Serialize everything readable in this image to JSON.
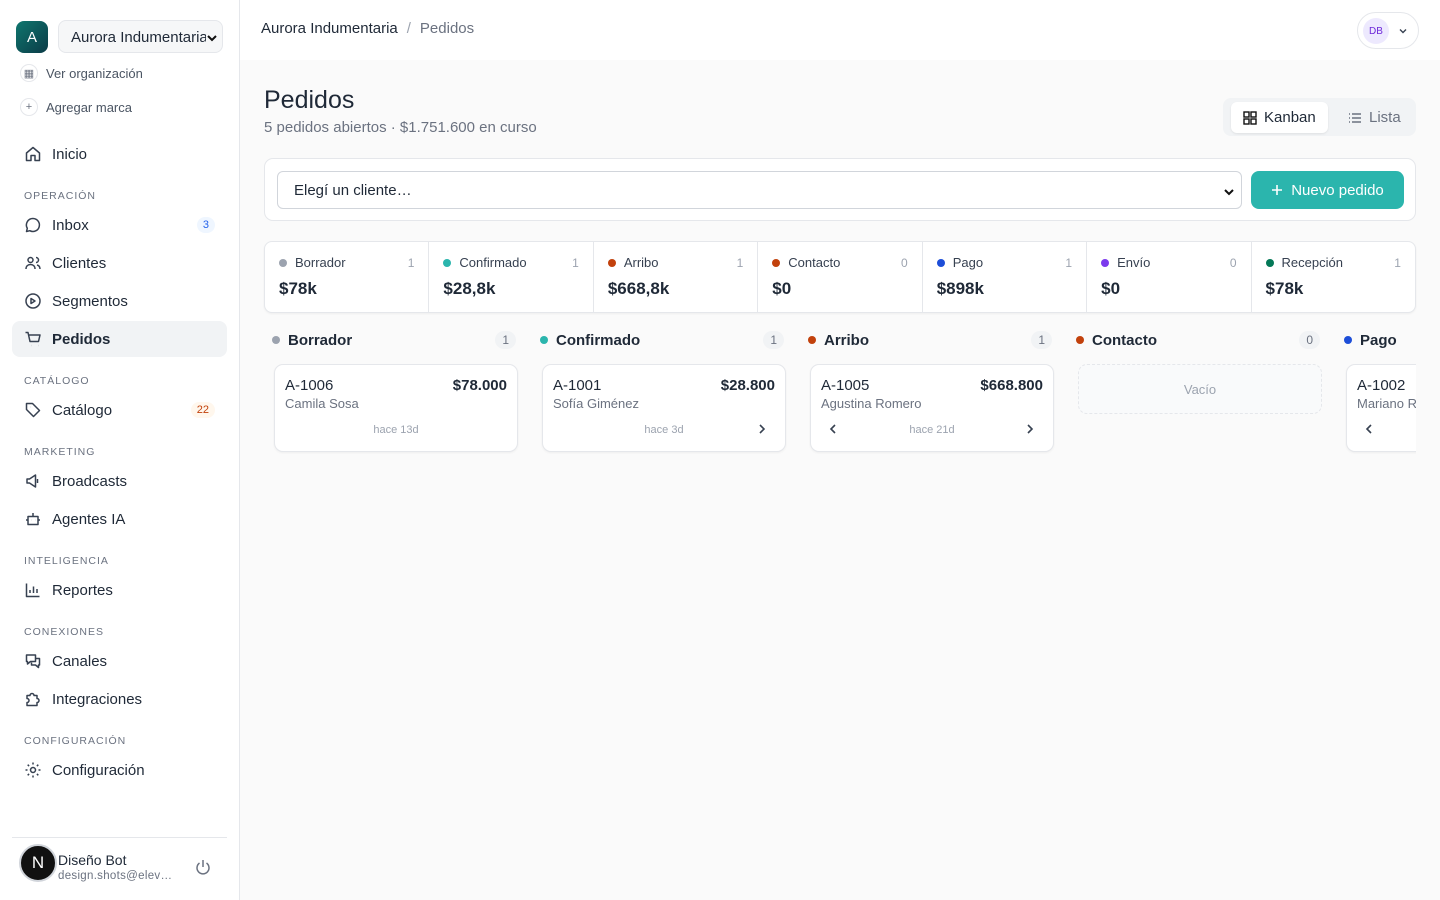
{
  "sidebar": {
    "org_initial": "A",
    "org_name": "Aurora Indumentaria",
    "links": [
      "Ver organización",
      "Agregar marca"
    ],
    "home": "Inicio",
    "sections": [
      {
        "title": "OPERACIÓN",
        "items": [
          {
            "label": "Inbox",
            "badge": 3
          },
          {
            "label": "Clientes"
          },
          {
            "label": "Segmentos"
          },
          {
            "label": "Pedidos"
          }
        ]
      },
      {
        "title": "CATÁLOGO",
        "items": [
          {
            "label": "Catálogo",
            "badge": 22
          }
        ]
      },
      {
        "title": "MARKETING",
        "items": [
          {
            "label": "Broadcasts"
          },
          {
            "label": "Agentes IA"
          }
        ]
      },
      {
        "title": "INTELIGENCIA",
        "items": [
          {
            "label": "Reportes"
          }
        ]
      },
      {
        "title": "CONEXIONES",
        "items": [
          {
            "label": "Canales"
          },
          {
            "label": "Integraciones"
          }
        ]
      },
      {
        "title": "CONFIGURACIÓN",
        "items": [
          {
            "label": "Configuración"
          }
        ]
      }
    ],
    "user": {
      "initial": "N",
      "name": "Diseño Bot",
      "email": "design.shots@elev…"
    }
  },
  "header": {
    "breadcrumb": [
      "Aurora Indumentaria",
      "Pedidos"
    ],
    "avatar": "DB"
  },
  "page": {
    "title": "Pedidos",
    "subtitle": "5 pedidos abiertos · $1.751.600 en curso",
    "views": [
      "Kanban",
      "Lista"
    ],
    "client_select": "Elegí un cliente…",
    "new_button": "Nuevo pedido"
  },
  "stages": [
    {
      "name": "Borrador",
      "count": 1,
      "total": "$78k",
      "color": "#9ca3af"
    },
    {
      "name": "Confirmado",
      "count": 1,
      "total": "$28,8k",
      "color": "#2bb5ad"
    },
    {
      "name": "Arribo",
      "count": 1,
      "total": "$668,8k",
      "color": "#c2410c"
    },
    {
      "name": "Contacto",
      "count": 0,
      "total": "$0",
      "color": "#c2410c"
    },
    {
      "name": "Pago",
      "count": 1,
      "total": "$898k",
      "color": "#1d4ed8"
    },
    {
      "name": "Envío",
      "count": 0,
      "total": "$0",
      "color": "#7c3aed"
    },
    {
      "name": "Recepción",
      "count": 1,
      "total": "$78k",
      "color": "#047857"
    }
  ],
  "columns": [
    {
      "name": "Borrador",
      "count": 1,
      "color": "#9ca3af",
      "cards": [
        {
          "id": "A-1006",
          "amount": "$78.000",
          "customer": "Camila Sosa",
          "age": "hace 13d"
        }
      ]
    },
    {
      "name": "Confirmado",
      "count": 1,
      "color": "#2bb5ad",
      "cards": [
        {
          "id": "A-1001",
          "amount": "$28.800",
          "customer": "Sofía Giménez",
          "age": "hace 3d"
        }
      ]
    },
    {
      "name": "Arribo",
      "count": 1,
      "color": "#c2410c",
      "cards": [
        {
          "id": "A-1005",
          "amount": "$668.800",
          "customer": "Agustina Romero",
          "age": "hace 21d"
        }
      ]
    },
    {
      "name": "Contacto",
      "count": 0,
      "color": "#c2410c",
      "cards": [],
      "empty": "Vacío"
    },
    {
      "name": "Pago",
      "color": "#1d4ed8",
      "cards": [
        {
          "id": "A-1002",
          "customer": "Mariano Ro"
        }
      ]
    }
  ]
}
